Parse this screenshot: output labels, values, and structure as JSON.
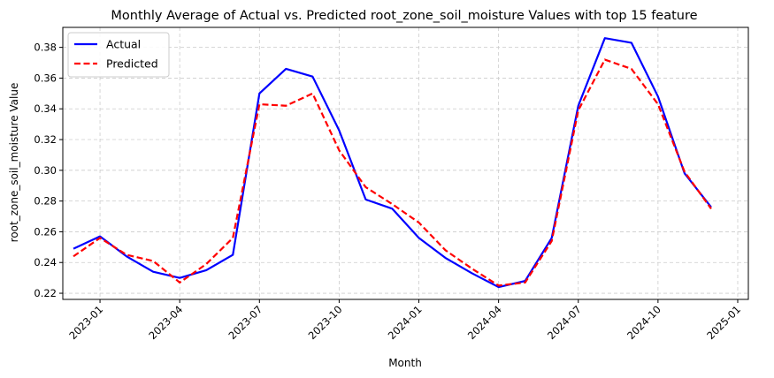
{
  "chart_data": {
    "type": "line",
    "title": "Monthly Average of Actual vs. Predicted root_zone_soil_moisture Values with top 15 feature",
    "xlabel": "Month",
    "ylabel": "root_zone_soil_moisture Value",
    "x": [
      "2022-12",
      "2023-01",
      "2023-02",
      "2023-03",
      "2023-04",
      "2023-05",
      "2023-06",
      "2023-07",
      "2023-08",
      "2023-09",
      "2023-10",
      "2023-11",
      "2023-12",
      "2024-01",
      "2024-02",
      "2024-03",
      "2024-04",
      "2024-05",
      "2024-06",
      "2024-07",
      "2024-08",
      "2024-09",
      "2024-10",
      "2024-11",
      "2024-12"
    ],
    "x_tick_labels": [
      "2023-01",
      "2023-04",
      "2023-07",
      "2023-10",
      "2024-01",
      "2024-04",
      "2024-07",
      "2024-10",
      "2025-01"
    ],
    "x_tick_index": [
      1,
      4,
      7,
      10,
      13,
      16,
      19,
      22,
      25
    ],
    "ylim": [
      0.216,
      0.393
    ],
    "y_ticks": [
      0.22,
      0.24,
      0.26,
      0.28,
      0.3,
      0.32,
      0.34,
      0.36,
      0.38
    ],
    "y_tick_labels": [
      "0.22",
      "0.24",
      "0.26",
      "0.28",
      "0.30",
      "0.32",
      "0.34",
      "0.36",
      "0.38"
    ],
    "grid": true,
    "legend_position": "top-left",
    "series": [
      {
        "name": "Actual",
        "color": "#0000ff",
        "style": "solid",
        "values": [
          0.249,
          0.257,
          0.244,
          0.234,
          0.23,
          0.235,
          0.245,
          0.35,
          0.366,
          0.361,
          0.326,
          0.281,
          0.275,
          0.256,
          0.243,
          0.233,
          0.224,
          0.228,
          0.256,
          0.342,
          0.386,
          0.383,
          0.348,
          0.298,
          0.276
        ]
      },
      {
        "name": "Predicted",
        "color": "#ff0000",
        "style": "dashed",
        "values": [
          0.244,
          0.256,
          0.245,
          0.241,
          0.227,
          0.239,
          0.256,
          0.343,
          0.342,
          0.35,
          0.313,
          0.289,
          0.278,
          0.266,
          0.248,
          0.236,
          0.225,
          0.227,
          0.254,
          0.339,
          0.372,
          0.366,
          0.343,
          0.299,
          0.275
        ]
      }
    ]
  }
}
